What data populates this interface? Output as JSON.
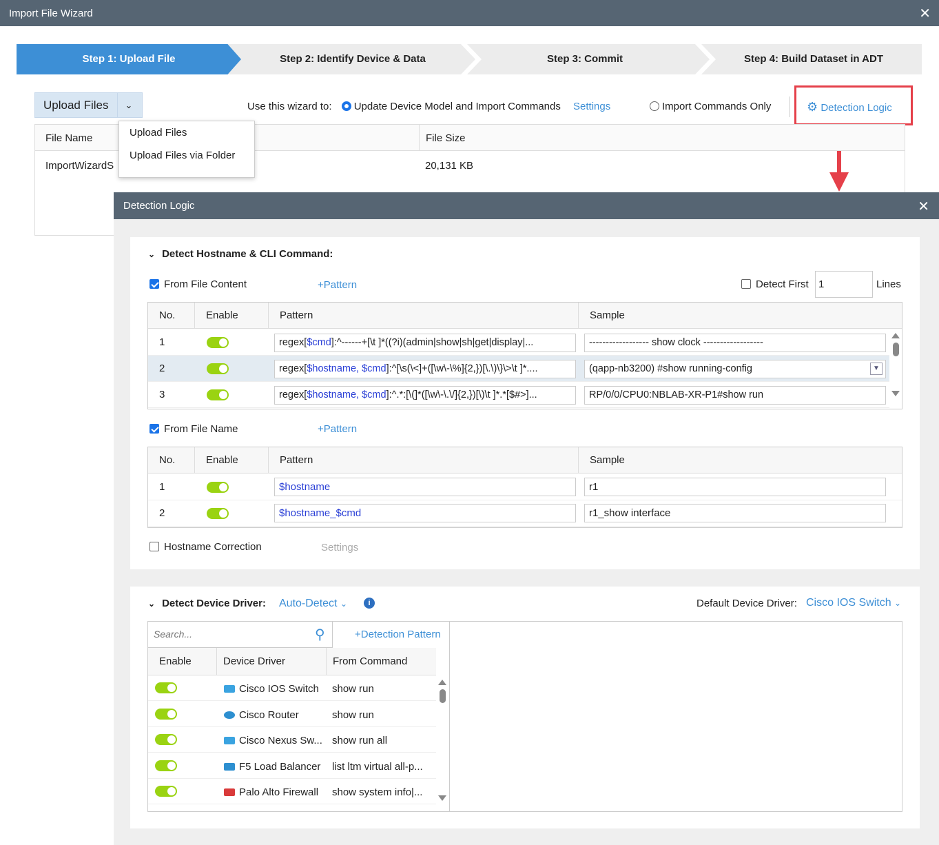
{
  "window": {
    "title": "Import File Wizard",
    "close": "✕"
  },
  "steps": [
    "Step 1: Upload File",
    "Step 2: Identify Device & Data",
    "Step 3: Commit",
    "Step 4: Build Dataset in ADT"
  ],
  "toolbar": {
    "upload_label": "Upload Files",
    "use_wizard": "Use this wizard to:",
    "option1": "Update Device Model and Import Commands",
    "settings": "Settings",
    "option2": "Import Commands Only",
    "detection_logic": "Detection Logic"
  },
  "upload_menu": [
    "Upload Files",
    "Upload Files via Folder"
  ],
  "files_table": {
    "headers": [
      "File Name",
      "File Size"
    ],
    "rows": [
      {
        "name": "ImportWizardS",
        "size": "20,131 KB"
      }
    ]
  },
  "dialog": {
    "title": "Detection Logic",
    "close": "✕",
    "hostname_section": {
      "title": "Detect Hostname & CLI Command:",
      "from_content": "From File Content",
      "add_pattern": "+Pattern",
      "detect_first": "Detect First",
      "detect_first_value": "1",
      "lines": "Lines",
      "headers": [
        "No.",
        "Enable",
        "Pattern",
        "Sample"
      ],
      "content_rows": [
        {
          "no": "1",
          "prefix": "regex[",
          "vars": "$cmd",
          "suffix": "]:^------+[\\t ]*((?i)(admin|show|sh|get|display|...",
          "sample": "------------------ show clock ------------------"
        },
        {
          "no": "2",
          "prefix": "regex[",
          "vars": "$hostname, $cmd",
          "suffix": "]:^[\\s(\\<]+([\\w\\-\\%]{2,})[\\.\\)\\}\\>\\t ]*....",
          "sample": "(qapp-nb3200) #show running-config"
        },
        {
          "no": "3",
          "prefix": "regex[",
          "vars": "$hostname, $cmd",
          "suffix": "]:^.*:[\\(]*([\\w\\-\\.\\/]{2,})[\\)\\t ]*.*[$#>]...",
          "sample": "RP/0/0/CPU0:NBLAB-XR-P1#show run"
        }
      ],
      "from_name": "From File Name",
      "name_rows": [
        {
          "no": "1",
          "pattern": "$hostname",
          "sample": "r1"
        },
        {
          "no": "2",
          "pattern": "$hostname_$cmd",
          "sample": "r1_show interface"
        }
      ],
      "hostname_correction": "Hostname Correction",
      "correction_settings": "Settings"
    },
    "driver_section": {
      "title": "Detect Device Driver:",
      "mode": "Auto-Detect",
      "default_label": "Default Device Driver:",
      "default_value": "Cisco IOS Switch",
      "search_placeholder": "Search...",
      "add_pattern": "+Detection Pattern",
      "headers": [
        "Enable",
        "Device Driver",
        "From Command"
      ],
      "rows": [
        {
          "driver": "Cisco IOS Switch",
          "command": "show run",
          "icon": "switch-icon",
          "color": "#3aa3e0"
        },
        {
          "driver": "Cisco Router",
          "command": "show run",
          "icon": "router-icon",
          "color": "#2d8fd0"
        },
        {
          "driver": "Cisco Nexus Sw...",
          "command": "show run all",
          "icon": "switch-icon",
          "color": "#3aa3e0"
        },
        {
          "driver": "F5 Load Balancer",
          "command": "list ltm virtual all-p...",
          "icon": "load-balancer-icon",
          "color": "#2d8fd0"
        },
        {
          "driver": "Palo Alto Firewall",
          "command": "show system info|...",
          "icon": "firewall-icon",
          "color": "#d93a3a"
        }
      ]
    }
  },
  "colors": {
    "accent": "#3d8fd6",
    "titlebar": "#566573",
    "toggle_on": "#9ad312",
    "highlight": "#e5404a"
  }
}
